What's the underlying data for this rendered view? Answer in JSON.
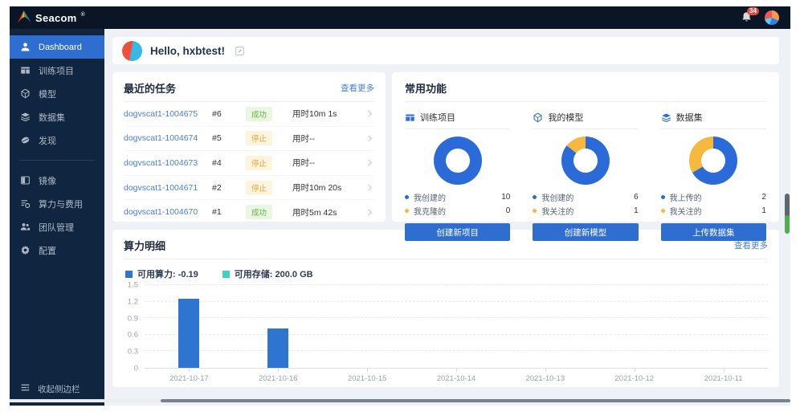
{
  "colors": {
    "accent_blue": "#2e6ed0",
    "donut_blue": "#2a6ad9",
    "donut_yellow": "#f6b93d",
    "bar_blue": "#2e75d2",
    "storage_teal": "#40d1c5",
    "success_green": "#5fb53a",
    "stopped_orange": "#e8a33d",
    "link_blue": "#4a7fd6"
  },
  "topbar": {
    "logo": "Seacom",
    "logo_mark": "®",
    "notification_badge": "34"
  },
  "sidebar": {
    "primary": [
      {
        "key": "dashboard",
        "label": "Dashboard",
        "icon": "user-icon",
        "active": true
      },
      {
        "key": "training-projects",
        "label": "训练项目",
        "icon": "training-projects-icon",
        "active": false
      },
      {
        "key": "models",
        "label": "模型",
        "icon": "model-icon",
        "active": false
      },
      {
        "key": "datasets",
        "label": "数据集",
        "icon": "dataset-icon",
        "active": false
      },
      {
        "key": "discover",
        "label": "发现",
        "icon": "discover-icon",
        "active": false
      }
    ],
    "secondary": [
      {
        "key": "images",
        "label": "镜像",
        "icon": "image-icon",
        "active": false
      },
      {
        "key": "compute-cost",
        "label": "算力与费用",
        "icon": "compute-cost-icon",
        "active": false
      },
      {
        "key": "team-management",
        "label": "团队管理",
        "icon": "team-icon",
        "active": false
      },
      {
        "key": "settings",
        "label": "配置",
        "icon": "settings-icon",
        "active": false
      }
    ],
    "collapse": {
      "label": "收起侧边栏",
      "icon": "collapse-icon"
    }
  },
  "greeting": {
    "text": "Hello, hxbtest!"
  },
  "tasks": {
    "title": "最近的任务",
    "view_more": "查看更多",
    "rows": [
      {
        "name": "dogvscat1-1004675",
        "run": "#6",
        "status": "成功",
        "status_type": "success",
        "duration": "用时10m 1s"
      },
      {
        "name": "dogvscat1-1004674",
        "run": "#5",
        "status": "停止",
        "status_type": "stopped",
        "duration": "用时--"
      },
      {
        "name": "dogvscat1-1004673",
        "run": "#4",
        "status": "停止",
        "status_type": "stopped",
        "duration": "用时--"
      },
      {
        "name": "dogvscat1-1004671",
        "run": "#2",
        "status": "停止",
        "status_type": "stopped",
        "duration": "用时10m 20s"
      },
      {
        "name": "dogvscat1-1004670",
        "run": "#1",
        "status": "成功",
        "status_type": "success",
        "duration": "用时5m 42s"
      }
    ]
  },
  "functions": {
    "title": "常用功能",
    "cards": [
      {
        "key": "training-projects",
        "title": "训练项目",
        "icon": "training-projects-icon",
        "button": "创建新项目",
        "button_name": "create-new-project-button",
        "segments": [
          {
            "label": "我创建的",
            "value": 10,
            "color": "#2a6ad9"
          },
          {
            "label": "我克隆的",
            "value": 0,
            "color": "#f6b93d"
          }
        ]
      },
      {
        "key": "my-models",
        "title": "我的模型",
        "icon": "model-icon",
        "button": "创建新模型",
        "button_name": "create-new-model-button",
        "segments": [
          {
            "label": "我创建的",
            "value": 6,
            "color": "#2a6ad9"
          },
          {
            "label": "我关注的",
            "value": 1,
            "color": "#f6b93d"
          }
        ]
      },
      {
        "key": "datasets",
        "title": "数据集",
        "icon": "dataset-icon",
        "button": "上传数据集",
        "button_name": "upload-dataset-button",
        "segments": [
          {
            "label": "我上传的",
            "value": 2,
            "color": "#2a6ad9"
          },
          {
            "label": "我关注的",
            "value": 1,
            "color": "#f6b93d"
          }
        ]
      }
    ]
  },
  "compute": {
    "title": "算力明细",
    "view_more": "查看更多"
  },
  "chart_data": {
    "type": "bar",
    "title": "算力明细",
    "legend": [
      {
        "label": "可用算力: -0.19",
        "color": "#2e75d2"
      },
      {
        "label": "可用存储: 200.0 GB",
        "color": "#40d1c5"
      }
    ],
    "legend_position": "top-left",
    "categories": [
      "2021-10-17",
      "2021-10-16",
      "2021-10-15",
      "2021-10-14",
      "2021-10-13",
      "2021-10-12",
      "2021-10-11"
    ],
    "values": [
      1.25,
      0.71,
      0,
      0,
      0,
      0,
      0
    ],
    "xlabel": "",
    "ylabel": "",
    "ylim": [
      0,
      1.5
    ],
    "yticks": [
      0,
      0.3,
      0.6,
      0.9,
      1.2,
      1.5
    ],
    "grid": "dashed-horizontal",
    "bar_color": "#2e75d2"
  }
}
